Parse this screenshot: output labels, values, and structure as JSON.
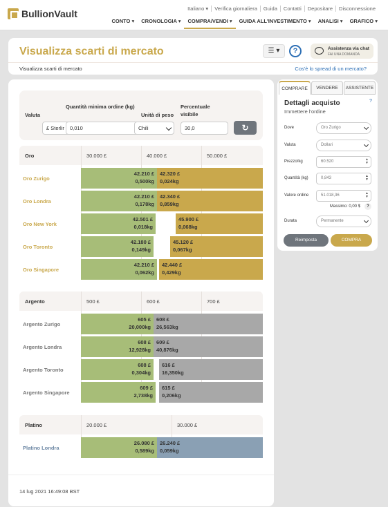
{
  "header": {
    "logo": "BullionVault",
    "util_links": [
      "Italiano ▾",
      "Verifica giornaliera",
      "Guida",
      "Contatti",
      "Depositare",
      "Disconnessione"
    ],
    "nav": [
      "CONTO ▾",
      "CRONOLOGIA ▾",
      "COMPRA/VENDI ▾",
      "GUIDA ALL'INVESTIMENTO ▾",
      "ANALISI ▾",
      "GRAFICO ▾"
    ],
    "nav_active": "COMPRA/VENDI ▾"
  },
  "title_card": {
    "title": "Visualizza scarti di mercato",
    "breadcrumb": "Visualizza scarti di mercato",
    "spread_link": "Cos'è lo spread di un mercato?",
    "menu_button": "☰ ▾",
    "help": "?",
    "chat_title": "Assistenza via chat",
    "chat_sub": "FAI UNA DOMANDA"
  },
  "filters": {
    "currency_label": "Valuta",
    "currency_value": "£ Sterlir",
    "min_qty_label": "Quantità minima ordine (kg)",
    "min_qty_value": "0,010",
    "weight_unit_label": "Unità di peso",
    "weight_unit_value": "Chili",
    "visible_pct_label": "Percentuale visibile",
    "visible_pct_value": "30,0"
  },
  "markets": [
    {
      "name": "Oro",
      "ticks": [
        "30.000 £",
        "40.000 £",
        "50.000 £"
      ],
      "rows": [
        {
          "label": "Oro Zurigo",
          "bid_price": "42.210 £",
          "bid_qty": "0,500kg",
          "ask_price": "42.320 £",
          "ask_qty": "0,024kg",
          "bid_frac": 0.42,
          "ask_frac": 0.58
        },
        {
          "label": "Oro Londra",
          "bid_price": "42.210 £",
          "bid_qty": "0,178kg",
          "ask_price": "42.340 £",
          "ask_qty": "0,859kg",
          "bid_frac": 0.42,
          "ask_frac": 0.58
        },
        {
          "label": "Oro New York",
          "bid_price": "42.501 £",
          "bid_qty": "0,018kg",
          "ask_price": "45.900 £",
          "ask_qty": "0,068kg",
          "bid_frac": 0.41,
          "ask_frac": 0.48
        },
        {
          "label": "Oro Toronto",
          "bid_price": "42.180 £",
          "bid_qty": "0,149kg",
          "ask_price": "45.120 £",
          "ask_qty": "0,067kg",
          "bid_frac": 0.4,
          "ask_frac": 0.51
        },
        {
          "label": "Oro Singapore",
          "bid_price": "42.210 £",
          "bid_qty": "0,062kg",
          "ask_price": "42.440 £",
          "ask_qty": "0,429kg",
          "bid_frac": 0.42,
          "ask_frac": 0.57
        }
      ]
    },
    {
      "name": "Argento",
      "ticks": [
        "500 £",
        "600 £",
        "700 £"
      ],
      "rows": [
        {
          "label": "Argento Zurigo",
          "bid_price": "605 £",
          "bid_qty": "20,000kg",
          "ask_price": "608 £",
          "ask_qty": "26,563kg",
          "bid_frac": 0.4,
          "ask_frac": 0.6
        },
        {
          "label": "Argento Londra",
          "bid_price": "608 £",
          "bid_qty": "12,928kg",
          "ask_price": "609 £",
          "ask_qty": "40,876kg",
          "bid_frac": 0.4,
          "ask_frac": 0.6
        },
        {
          "label": "Argento Toronto",
          "bid_price": "608 £",
          "bid_qty": "0,304kg",
          "ask_price": "616 £",
          "ask_qty": "16,350kg",
          "bid_frac": 0.4,
          "ask_frac": 0.57
        },
        {
          "label": "Argento Singapore",
          "bid_price": "609 £",
          "bid_qty": "2,738kg",
          "ask_price": "615 £",
          "ask_qty": "0,206kg",
          "bid_frac": 0.41,
          "ask_frac": 0.57
        }
      ]
    },
    {
      "name": "Platino",
      "ticks": [
        "20.000 £",
        "30.000 £"
      ],
      "rows": [
        {
          "label": "Platino Londra",
          "bid_price": "26.080 £",
          "bid_qty": "0,589kg",
          "ask_price": "26.240 £",
          "ask_qty": "0,059kg",
          "bid_frac": 0.42,
          "ask_frac": 0.58
        }
      ]
    }
  ],
  "timestamp": "14 lug 2021 16:49:08 BST",
  "panel": {
    "tabs": [
      "COMPRARE",
      "VENDERE",
      "ASSISTENTE"
    ],
    "title": "Dettagli acquisto",
    "subtitle": "Immettere l'ordine",
    "help": "?",
    "fields": [
      {
        "label": "Dove",
        "value": "Oro Zurigo",
        "type": "select"
      },
      {
        "label": "Valuta",
        "value": "Dollari",
        "type": "select"
      },
      {
        "label": "Prezzo/kg",
        "value": "60.520",
        "type": "number"
      },
      {
        "label": "Quantità (kg)",
        "value": "0,843",
        "type": "number"
      },
      {
        "label": "Valore ordine",
        "value": "51.018,36",
        "type": "number"
      },
      {
        "label": "Durata",
        "value": "Permanente",
        "type": "select"
      }
    ],
    "max_label": "Massimo: 0,00 $",
    "reset_label": "Reimposta",
    "buy_label": "COMPRA"
  },
  "colors": {
    "gold": "#c9a84c",
    "green": "#a7bd78",
    "silver": "#a8a8a8",
    "platinum": "#8aa0b4",
    "link": "#2d6fb5"
  }
}
